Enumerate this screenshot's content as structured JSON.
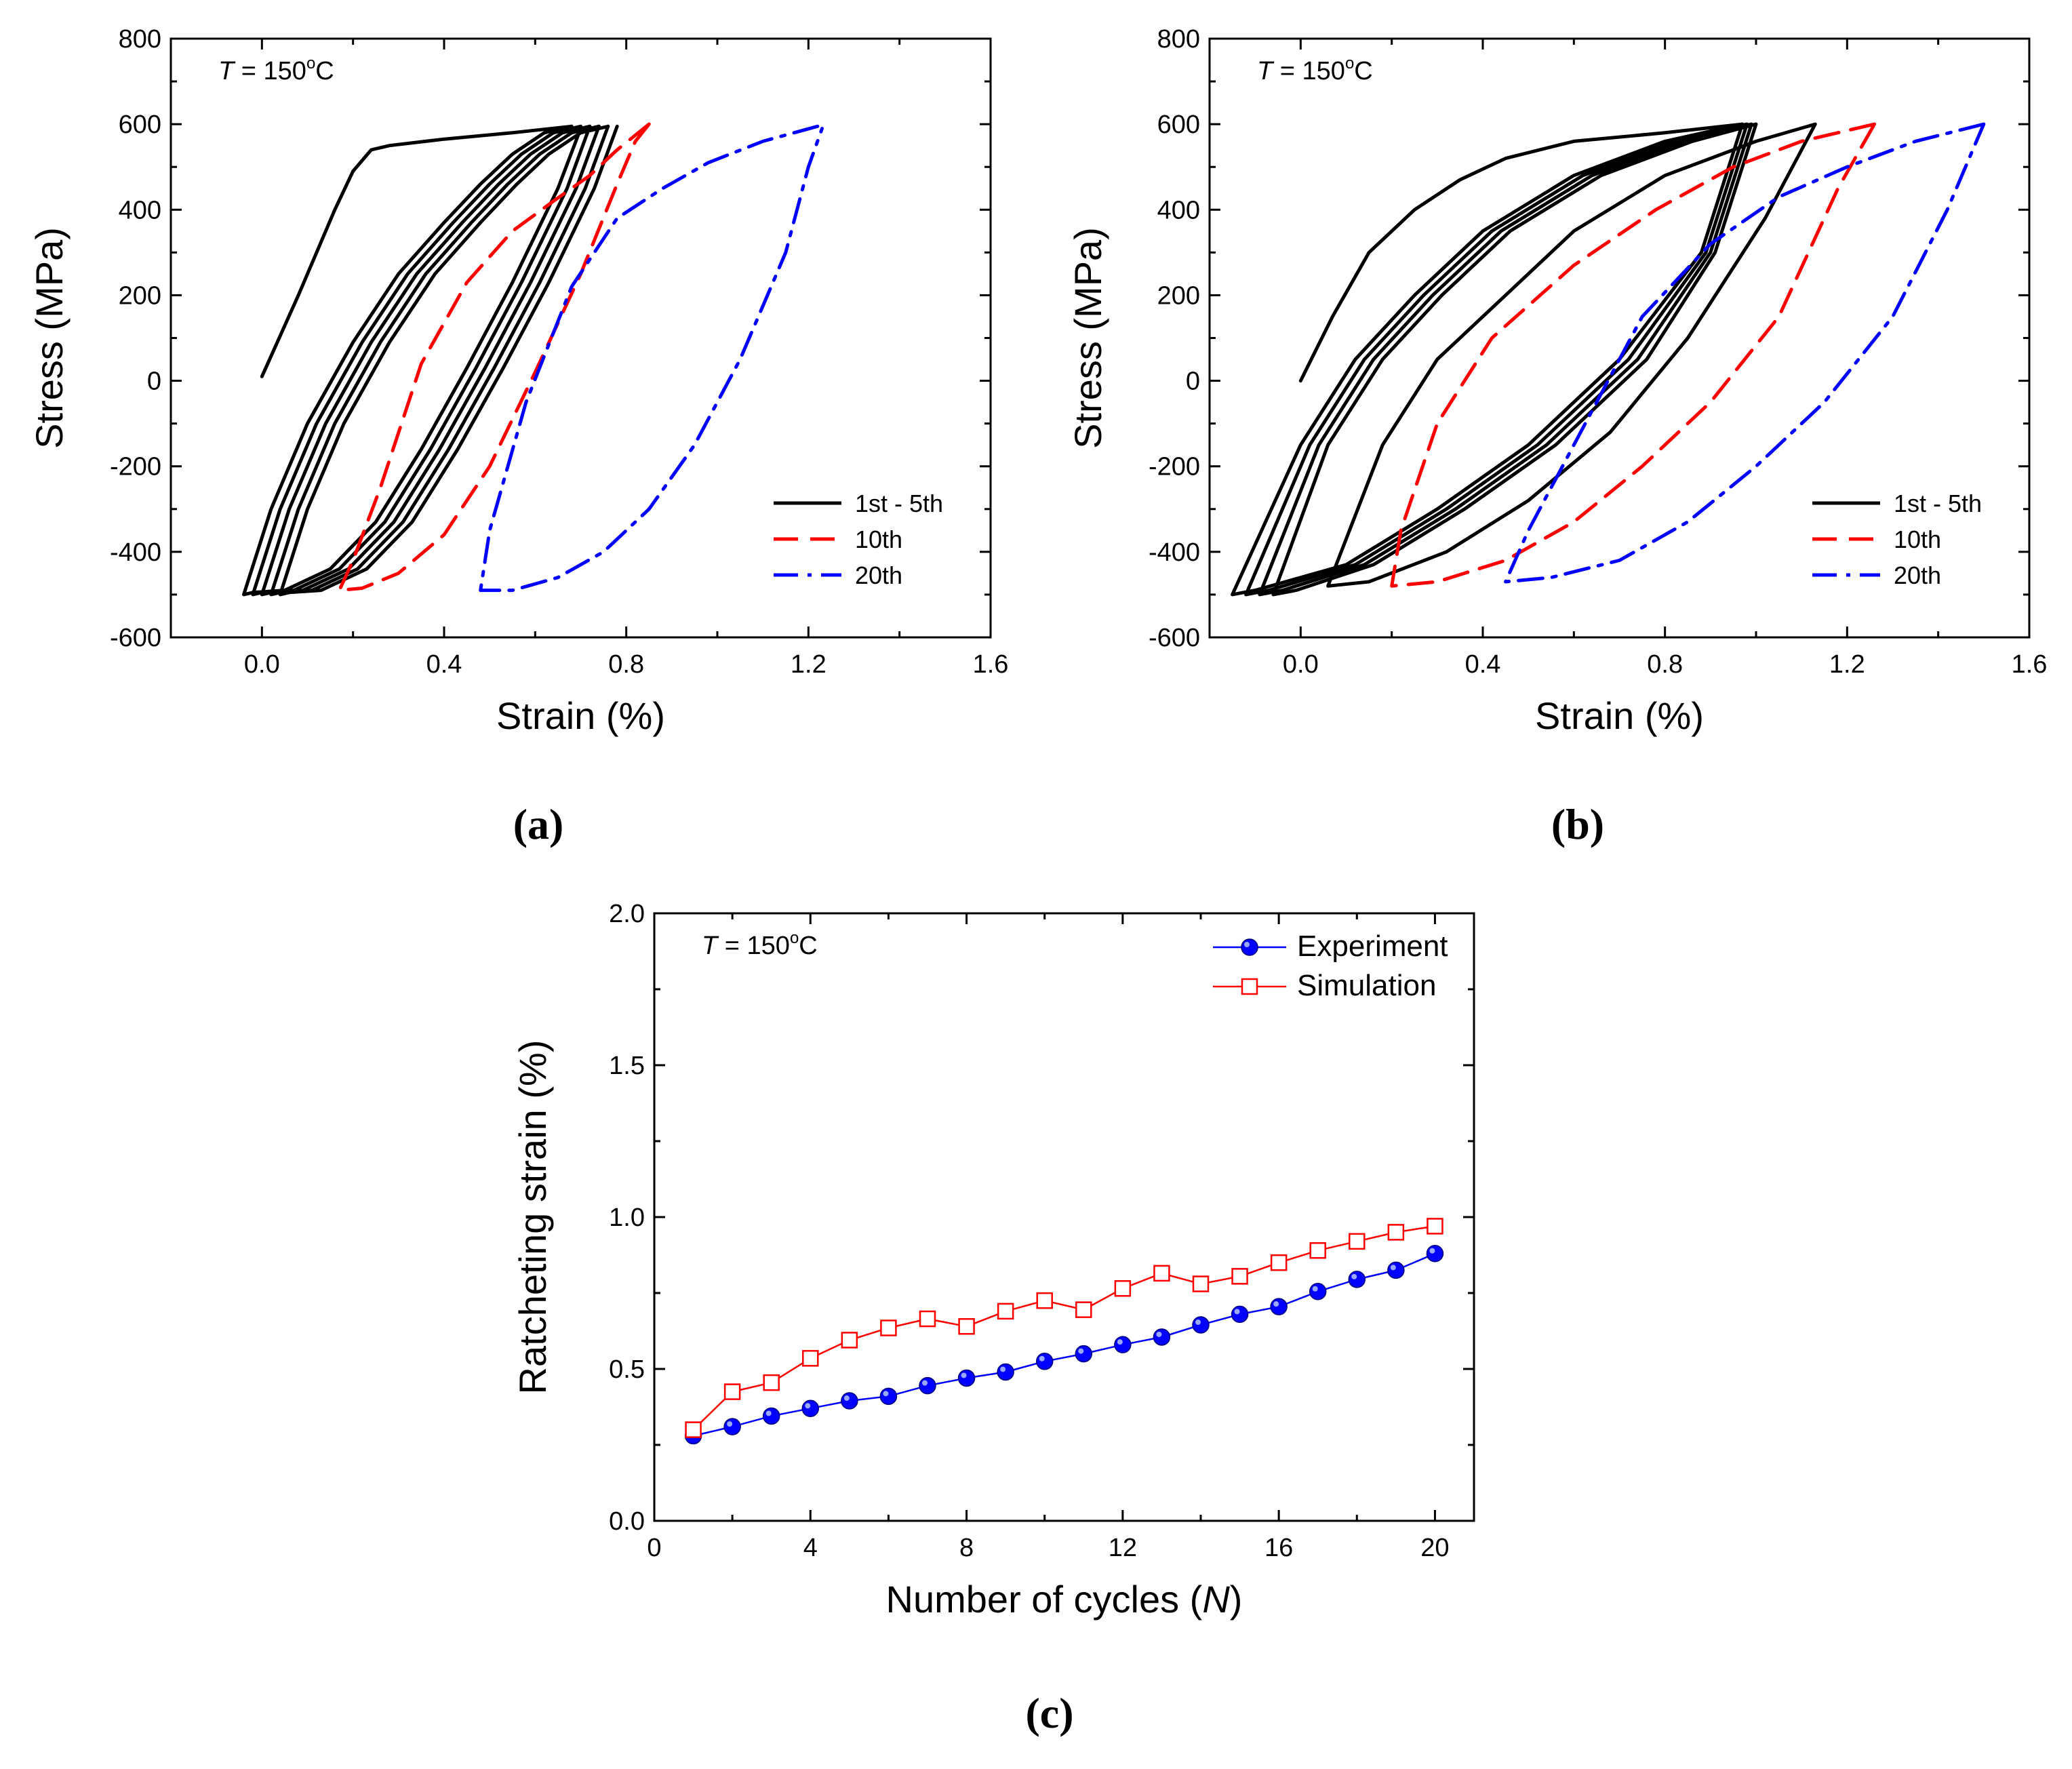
{
  "figure": {
    "panels": [
      "a",
      "b",
      "c"
    ]
  },
  "chart_data": [
    {
      "id": "a",
      "type": "line",
      "panel_label": "a",
      "annotation": {
        "symbol": "T",
        "text": " = 150",
        "degree": "o",
        "unit": "C"
      },
      "xlabel": "Strain (%)",
      "ylabel": "Stress (MPa)",
      "xlim": [
        -0.2,
        1.6
      ],
      "ylim": [
        -600,
        800
      ],
      "xticks": [
        0.0,
        0.4,
        0.8,
        1.2,
        1.6
      ],
      "xtick_labels": [
        "0.0",
        "0.4",
        "0.8",
        "1.2",
        "1.6"
      ],
      "yticks": [
        -600,
        -400,
        -200,
        0,
        200,
        400,
        600,
        800
      ],
      "ytick_labels": [
        "-600",
        "-400",
        "-200",
        "0",
        "200",
        "400",
        "600",
        "800"
      ],
      "legend_position": "bottom-right",
      "series": [
        {
          "name": "1st - 5th",
          "color": "#000000",
          "dash": "solid",
          "x": [
            0.0,
            0.08,
            0.16,
            0.2,
            0.24,
            0.28,
            0.4,
            0.55,
            0.68
          ],
          "y": [
            10,
            200,
            400,
            490,
            540,
            550,
            565,
            580,
            595
          ]
        },
        {
          "name": "1st - 5th",
          "color": "#000000",
          "dash": "solid",
          "hide_legend": true,
          "x": [
            0.68,
            0.62,
            0.55,
            0.48,
            0.4,
            0.3,
            0.2,
            0.1,
            0.02,
            -0.04,
            -0.02,
            0.05,
            0.15,
            0.25,
            0.35,
            0.45,
            0.55,
            0.65,
            0.7
          ],
          "y": [
            595,
            580,
            530,
            460,
            370,
            250,
            90,
            -100,
            -300,
            -500,
            -495,
            -490,
            -440,
            -330,
            -160,
            30,
            230,
            450,
            590
          ]
        },
        {
          "name": "1st - 5th",
          "color": "#000000",
          "dash": "solid",
          "hide_legend": true,
          "x": [
            0.7,
            0.64,
            0.57,
            0.5,
            0.42,
            0.32,
            0.22,
            0.12,
            0.04,
            -0.02,
            0.0,
            0.07,
            0.17,
            0.27,
            0.37,
            0.47,
            0.57,
            0.67,
            0.72
          ],
          "y": [
            595,
            580,
            530,
            460,
            370,
            250,
            90,
            -100,
            -300,
            -500,
            -495,
            -490,
            -440,
            -330,
            -160,
            30,
            230,
            450,
            595
          ]
        },
        {
          "name": "1st - 5th",
          "color": "#000000",
          "dash": "solid",
          "hide_legend": true,
          "x": [
            0.72,
            0.66,
            0.59,
            0.52,
            0.44,
            0.34,
            0.24,
            0.14,
            0.06,
            0.0,
            0.02,
            0.09,
            0.19,
            0.29,
            0.39,
            0.49,
            0.59,
            0.69,
            0.74
          ],
          "y": [
            595,
            580,
            530,
            460,
            370,
            250,
            90,
            -100,
            -300,
            -500,
            -495,
            -490,
            -440,
            -330,
            -160,
            30,
            230,
            450,
            595
          ]
        },
        {
          "name": "1st - 5th",
          "color": "#000000",
          "dash": "solid",
          "hide_legend": true,
          "x": [
            0.74,
            0.68,
            0.61,
            0.54,
            0.46,
            0.36,
            0.26,
            0.16,
            0.08,
            0.02,
            0.04,
            0.11,
            0.21,
            0.31,
            0.41,
            0.51,
            0.61,
            0.71,
            0.76
          ],
          "y": [
            595,
            580,
            530,
            460,
            370,
            250,
            90,
            -100,
            -300,
            -500,
            -495,
            -490,
            -440,
            -330,
            -160,
            30,
            230,
            450,
            595
          ]
        },
        {
          "name": "1st - 5th",
          "color": "#000000",
          "dash": "solid",
          "hide_legend": true,
          "x": [
            0.76,
            0.7,
            0.63,
            0.56,
            0.48,
            0.38,
            0.28,
            0.18,
            0.1,
            0.04,
            0.06,
            0.13,
            0.23,
            0.33,
            0.43,
            0.53,
            0.63,
            0.73,
            0.78
          ],
          "y": [
            595,
            580,
            530,
            460,
            370,
            250,
            90,
            -100,
            -300,
            -500,
            -495,
            -490,
            -440,
            -330,
            -160,
            30,
            230,
            450,
            595
          ]
        },
        {
          "name": "10th",
          "color": "#ff0000",
          "dash": "dash",
          "x": [
            0.85,
            0.78,
            0.72,
            0.64,
            0.55,
            0.45,
            0.35,
            0.26,
            0.2,
            0.17,
            0.22,
            0.3,
            0.4,
            0.5,
            0.6,
            0.7,
            0.78,
            0.82,
            0.85
          ],
          "y": [
            600,
            540,
            480,
            420,
            350,
            230,
            40,
            -250,
            -420,
            -490,
            -485,
            -450,
            -360,
            -200,
            20,
            250,
            460,
            560,
            600
          ]
        },
        {
          "name": "20th",
          "color": "#0000ff",
          "dash": "dashdot",
          "x": [
            1.22,
            1.1,
            0.98,
            0.88,
            0.78,
            0.68,
            0.58,
            0.5,
            0.48,
            0.55,
            0.65,
            0.75,
            0.85,
            0.95,
            1.05,
            1.15,
            1.2,
            1.23
          ],
          "y": [
            595,
            560,
            510,
            450,
            380,
            220,
            -50,
            -350,
            -490,
            -490,
            -460,
            -400,
            -300,
            -150,
            50,
            300,
            500,
            590
          ]
        }
      ]
    },
    {
      "id": "b",
      "type": "line",
      "panel_label": "b",
      "annotation": {
        "symbol": "T",
        "text": " = 150",
        "degree": "o",
        "unit": "C"
      },
      "xlabel": "Strain (%)",
      "ylabel": "Stress  (MPa)",
      "xlim": [
        -0.2,
        1.6
      ],
      "ylim": [
        -600,
        800
      ],
      "xticks": [
        0.0,
        0.4,
        0.8,
        1.2,
        1.6
      ],
      "xtick_labels": [
        "0.0",
        "0.4",
        "0.8",
        "1.2",
        "1.6"
      ],
      "yticks": [
        -600,
        -400,
        -200,
        0,
        200,
        400,
        600,
        800
      ],
      "ytick_labels": [
        "-600",
        "-400",
        "-200",
        "0",
        "200",
        "400",
        "600",
        "800"
      ],
      "legend_position": "bottom-right",
      "series": [
        {
          "name": "1st - 5th",
          "color": "#000000",
          "dash": "solid",
          "x": [
            0.0,
            0.07,
            0.15,
            0.25,
            0.35,
            0.45,
            0.6,
            0.8,
            0.97
          ],
          "y": [
            0,
            150,
            300,
            400,
            470,
            520,
            560,
            580,
            600
          ]
        },
        {
          "name": "1st - 5th",
          "color": "#000000",
          "dash": "solid",
          "hide_legend": true,
          "x": [
            0.97,
            0.8,
            0.6,
            0.4,
            0.25,
            0.12,
            0.0,
            -0.15,
            -0.1,
            0.1,
            0.3,
            0.5,
            0.7,
            0.88,
            0.97
          ],
          "y": [
            600,
            560,
            480,
            350,
            200,
            50,
            -150,
            -500,
            -490,
            -430,
            -300,
            -150,
            50,
            300,
            600
          ]
        },
        {
          "name": "1st - 5th",
          "color": "#000000",
          "dash": "solid",
          "hide_legend": true,
          "x": [
            0.98,
            0.82,
            0.62,
            0.42,
            0.27,
            0.14,
            0.02,
            -0.12,
            -0.07,
            0.12,
            0.32,
            0.52,
            0.72,
            0.89,
            0.98
          ],
          "y": [
            600,
            560,
            480,
            350,
            200,
            50,
            -150,
            -500,
            -490,
            -430,
            -300,
            -150,
            50,
            300,
            600
          ]
        },
        {
          "name": "1st - 5th",
          "color": "#000000",
          "dash": "solid",
          "hide_legend": true,
          "x": [
            0.99,
            0.84,
            0.64,
            0.44,
            0.29,
            0.16,
            0.04,
            -0.09,
            -0.04,
            0.14,
            0.34,
            0.54,
            0.74,
            0.9,
            0.99
          ],
          "y": [
            600,
            560,
            480,
            350,
            200,
            50,
            -150,
            -500,
            -490,
            -430,
            -300,
            -150,
            50,
            300,
            600
          ]
        },
        {
          "name": "1st - 5th",
          "color": "#000000",
          "dash": "solid",
          "hide_legend": true,
          "x": [
            1.0,
            0.86,
            0.66,
            0.46,
            0.31,
            0.18,
            0.06,
            -0.06,
            -0.01,
            0.16,
            0.36,
            0.56,
            0.76,
            0.91,
            1.0
          ],
          "y": [
            600,
            560,
            480,
            350,
            200,
            50,
            -150,
            -500,
            -490,
            -430,
            -300,
            -150,
            50,
            300,
            600
          ]
        },
        {
          "name": "1st - 5th",
          "color": "#000000",
          "dash": "solid",
          "hide_legend": true,
          "x": [
            1.13,
            1.0,
            0.8,
            0.6,
            0.45,
            0.3,
            0.18,
            0.06,
            0.15,
            0.32,
            0.5,
            0.68,
            0.85,
            1.02,
            1.13
          ],
          "y": [
            600,
            560,
            480,
            350,
            200,
            50,
            -150,
            -480,
            -470,
            -400,
            -280,
            -120,
            100,
            380,
            600
          ]
        },
        {
          "name": "10th",
          "color": "#ff0000",
          "dash": "dash",
          "x": [
            1.26,
            1.1,
            0.95,
            0.78,
            0.6,
            0.42,
            0.3,
            0.22,
            0.2,
            0.3,
            0.45,
            0.6,
            0.75,
            0.9,
            1.05,
            1.18,
            1.26
          ],
          "y": [
            600,
            560,
            500,
            400,
            270,
            100,
            -100,
            -350,
            -480,
            -470,
            -420,
            -330,
            -200,
            -50,
            150,
            450,
            600
          ]
        },
        {
          "name": "20th",
          "color": "#0000ff",
          "dash": "dashdot",
          "x": [
            1.5,
            1.35,
            1.2,
            1.05,
            0.9,
            0.75,
            0.6,
            0.5,
            0.45,
            0.55,
            0.7,
            0.85,
            1.0,
            1.15,
            1.3,
            1.42,
            1.5
          ],
          "y": [
            600,
            560,
            500,
            430,
            320,
            150,
            -150,
            -350,
            -470,
            -460,
            -420,
            -330,
            -200,
            -50,
            150,
            400,
            600
          ]
        }
      ]
    },
    {
      "id": "c",
      "type": "line",
      "panel_label": "c",
      "annotation": {
        "symbol": "T",
        "text": " = 150",
        "degree": "o",
        "unit": "C"
      },
      "xlabel": "Number of cycles (",
      "xlabel_symbol": "N",
      "xlabel_end": ")",
      "ylabel": "Ratcheting strain (%)",
      "xlim": [
        0,
        21
      ],
      "ylim": [
        0,
        2.0
      ],
      "xticks": [
        0,
        4,
        8,
        12,
        16,
        20
      ],
      "xtick_labels": [
        "0",
        "4",
        "8",
        "12",
        "16",
        "20"
      ],
      "yticks": [
        0.0,
        0.5,
        1.0,
        1.5,
        2.0
      ],
      "ytick_labels": [
        "0.0",
        "0.5",
        "1.0",
        "1.5",
        "2.0"
      ],
      "legend_position": "top-right",
      "series": [
        {
          "name": "Experiment",
          "color": "#0000ff",
          "marker": "filled-circle",
          "x": [
            1,
            2,
            3,
            4,
            5,
            6,
            7,
            8,
            9,
            10,
            11,
            12,
            13,
            14,
            15,
            16,
            17,
            18,
            19,
            20
          ],
          "y": [
            0.28,
            0.31,
            0.345,
            0.37,
            0.395,
            0.41,
            0.445,
            0.47,
            0.49,
            0.525,
            0.55,
            0.58,
            0.605,
            0.645,
            0.68,
            0.705,
            0.755,
            0.795,
            0.825,
            0.88
          ]
        },
        {
          "name": "Simulation",
          "color": "#ff0000",
          "marker": "open-square",
          "x": [
            1,
            2,
            3,
            4,
            5,
            6,
            7,
            8,
            9,
            10,
            11,
            12,
            13,
            14,
            15,
            16,
            17,
            18,
            19,
            20
          ],
          "y": [
            0.3,
            0.425,
            0.455,
            0.535,
            0.595,
            0.635,
            0.665,
            0.64,
            0.69,
            0.725,
            0.695,
            0.765,
            0.815,
            0.78,
            0.805,
            0.85,
            0.89,
            0.92,
            0.95,
            0.97
          ]
        }
      ]
    }
  ]
}
